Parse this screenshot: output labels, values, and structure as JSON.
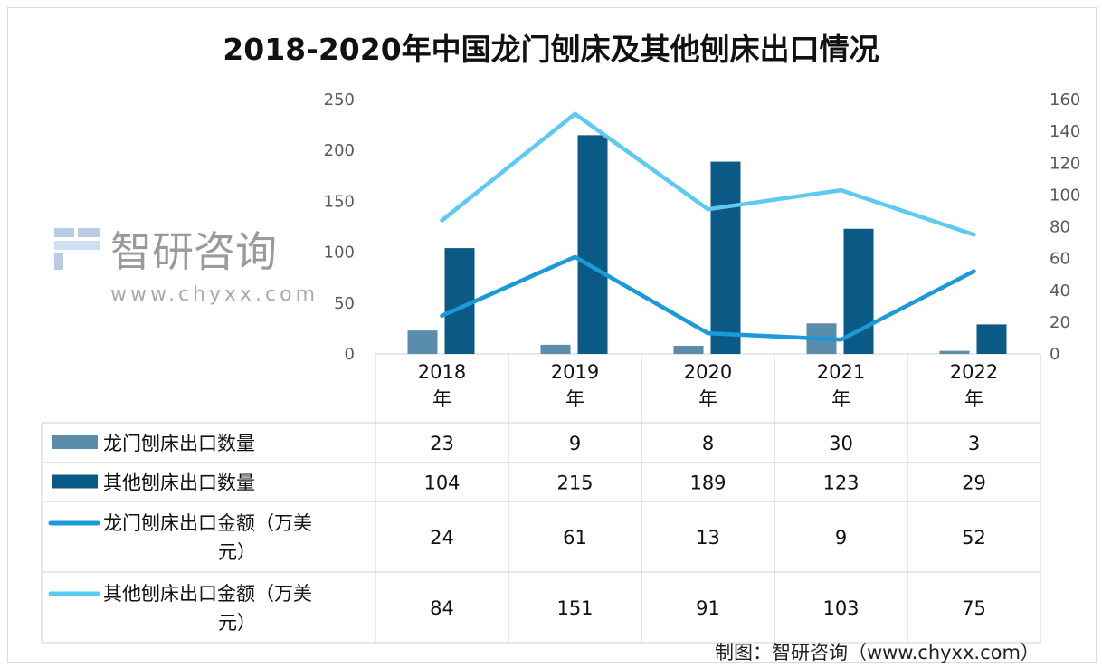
{
  "chart_data": {
    "type": "bar+line",
    "title": "2018-2020年中国龙门刨床及其他刨床出口情况",
    "categories": [
      "2018\n年",
      "2019\n年",
      "2020\n年",
      "2021\n年",
      "2022\n年"
    ],
    "category_lines": [
      [
        "2018",
        "年"
      ],
      [
        "2019",
        "年"
      ],
      [
        "2020",
        "年"
      ],
      [
        "2021",
        "年"
      ],
      [
        "2022",
        "年"
      ]
    ],
    "y_left": {
      "lim": [
        0,
        250
      ],
      "ticks": [
        "0",
        "50",
        "100",
        "150",
        "200",
        "250"
      ]
    },
    "y_right": {
      "lim": [
        0,
        160
      ],
      "ticks": [
        "0",
        "20",
        "40",
        "60",
        "80",
        "100",
        "120",
        "140",
        "160"
      ]
    },
    "grid": false,
    "legend_placement": "data-table",
    "series": [
      {
        "name": "龙门刨床出口数量",
        "name_lines": [
          "龙门刨床出口数量"
        ],
        "kind": "bar",
        "axis": "left",
        "color": "#5a8cab",
        "values": [
          23,
          9,
          8,
          30,
          3
        ]
      },
      {
        "name": "其他刨床出口数量",
        "name_lines": [
          "其他刨床出口数量"
        ],
        "kind": "bar",
        "axis": "left",
        "color": "#0b5a86",
        "values": [
          104,
          215,
          189,
          123,
          29
        ]
      },
      {
        "name": "龙门刨床出口金额（万美元）",
        "name_lines": [
          "龙门刨床出口金额（万美",
          "元）"
        ],
        "kind": "line",
        "axis": "right",
        "color": "#1a9ad8",
        "values": [
          24,
          61,
          13,
          9,
          52
        ]
      },
      {
        "name": "其他刨床出口金额（万美元）",
        "name_lines": [
          "其他刨床出口金额（万美",
          "元）"
        ],
        "kind": "line",
        "axis": "right",
        "color": "#5ccaf2",
        "values": [
          84,
          151,
          91,
          103,
          75
        ]
      }
    ]
  },
  "footer": {
    "source": "制图：智研咨询（www.chyxx.com）"
  },
  "watermark": {
    "brand": "智研咨询",
    "url": "www.chyxx.com"
  }
}
